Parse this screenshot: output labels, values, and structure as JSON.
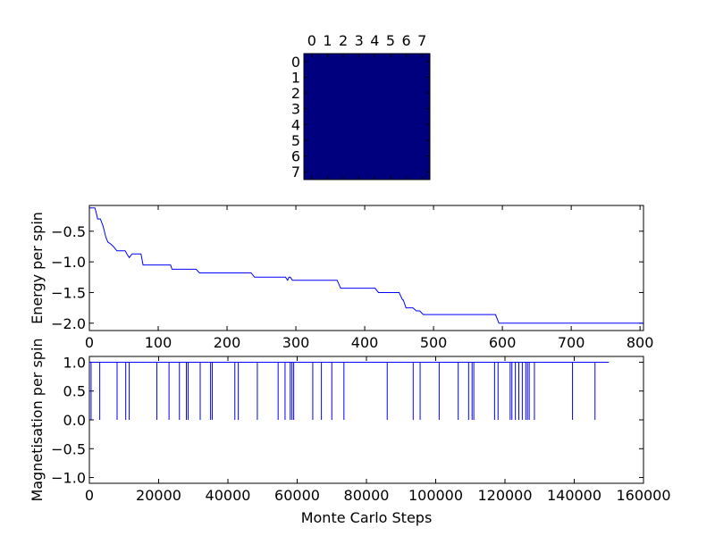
{
  "chart_data": [
    {
      "type": "heatmap",
      "title": "",
      "rows": 8,
      "cols": 8,
      "x_ticks": [
        "0",
        "1",
        "2",
        "3",
        "4",
        "5",
        "6",
        "7"
      ],
      "y_ticks": [
        "0",
        "1",
        "2",
        "3",
        "4",
        "5",
        "6",
        "7"
      ],
      "values": [
        [
          -1,
          -1,
          -1,
          -1,
          -1,
          -1,
          -1,
          -1
        ],
        [
          -1,
          -1,
          -1,
          -1,
          -1,
          -1,
          -1,
          -1
        ],
        [
          -1,
          -1,
          -1,
          -1,
          -1,
          -1,
          -1,
          -1
        ],
        [
          -1,
          -1,
          -1,
          -1,
          -1,
          -1,
          -1,
          -1
        ],
        [
          -1,
          -1,
          -1,
          -1,
          -1,
          -1,
          -1,
          -1
        ],
        [
          -1,
          -1,
          -1,
          -1,
          -1,
          -1,
          -1,
          -1
        ],
        [
          -1,
          -1,
          -1,
          -1,
          -1,
          -1,
          -1,
          -1
        ],
        [
          -1,
          -1,
          -1,
          -1,
          -1,
          -1,
          -1,
          -1
        ]
      ],
      "color": "#00007f"
    },
    {
      "type": "line",
      "xlabel": "",
      "ylabel": "Energy per spin",
      "xlim": [
        0,
        805
      ],
      "ylim": [
        -2.12,
        -0.08
      ],
      "x_ticks": [
        0,
        100,
        200,
        300,
        400,
        500,
        600,
        700,
        800
      ],
      "y_ticks": [
        -0.5,
        -1.0,
        -1.5,
        -2.0
      ],
      "y_tick_labels": [
        "−0.5",
        "−1.0",
        "−1.5",
        "−2.0"
      ],
      "color": "#0000ff",
      "x": [
        0,
        8,
        10,
        12,
        16,
        20,
        24,
        27,
        30,
        35,
        40,
        45,
        52,
        55,
        58,
        62,
        65,
        70,
        75,
        78,
        80,
        100,
        118,
        120,
        140,
        155,
        160,
        200,
        235,
        240,
        280,
        285,
        288,
        290,
        292,
        295,
        300,
        320,
        360,
        365,
        370,
        415,
        420,
        450,
        452,
        455,
        456,
        460,
        465,
        470,
        475,
        480,
        485,
        490,
        500,
        590,
        595,
        600,
        700,
        805
      ],
      "y": [
        -0.12,
        -0.12,
        -0.2,
        -0.3,
        -0.3,
        -0.42,
        -0.6,
        -0.68,
        -0.7,
        -0.75,
        -0.82,
        -0.82,
        -0.82,
        -0.88,
        -0.93,
        -0.87,
        -0.87,
        -0.87,
        -0.87,
        -1.05,
        -1.05,
        -1.05,
        -1.05,
        -1.12,
        -1.12,
        -1.12,
        -1.18,
        -1.18,
        -1.18,
        -1.25,
        -1.25,
        -1.25,
        -1.3,
        -1.25,
        -1.25,
        -1.3,
        -1.3,
        -1.3,
        -1.3,
        -1.43,
        -1.43,
        -1.43,
        -1.5,
        -1.5,
        -1.55,
        -1.62,
        -1.62,
        -1.75,
        -1.75,
        -1.75,
        -1.8,
        -1.8,
        -1.86,
        -1.86,
        -1.86,
        -1.86,
        -2.0,
        -2.0,
        -2.0,
        -2.0
      ]
    },
    {
      "type": "line",
      "xlabel": "Monte Carlo Steps",
      "ylabel": "Magnetisation per spin",
      "xlim": [
        0,
        160000
      ],
      "ylim": [
        -1.1,
        1.1
      ],
      "x_ticks": [
        0,
        20000,
        40000,
        60000,
        80000,
        100000,
        120000,
        140000,
        160000
      ],
      "y_ticks": [
        1.0,
        0.5,
        0.0,
        -0.5,
        -1.0
      ],
      "y_tick_labels": [
        "1.0",
        "0.5",
        "0.0",
        "−0.5",
        "−1.0"
      ],
      "color": "#0000ff",
      "baseline": 1.0,
      "end_x": 150000,
      "drops_to_zero_at": [
        500,
        3000,
        8000,
        10500,
        11500,
        19500,
        23000,
        26000,
        28000,
        28500,
        32000,
        35000,
        35500,
        42000,
        43000,
        48500,
        54500,
        56500,
        58000,
        58500,
        59000,
        64500,
        67000,
        70000,
        73500,
        86000,
        93500,
        95500,
        101000,
        106500,
        109500,
        110500,
        111000,
        117000,
        118000,
        121500,
        122000,
        123000,
        124000,
        125000,
        126000,
        126500,
        127000,
        128500,
        139500,
        146000
      ]
    }
  ]
}
